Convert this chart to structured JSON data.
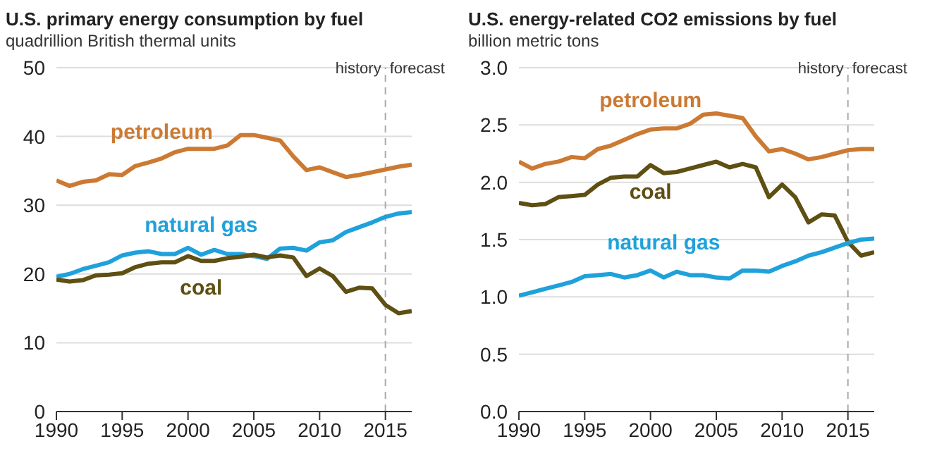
{
  "chart_data": [
    {
      "type": "line",
      "title": "U.S. primary energy consumption by fuel",
      "subtitle": "quadrillion British thermal units",
      "x": [
        1990,
        1991,
        1992,
        1993,
        1994,
        1995,
        1996,
        1997,
        1998,
        1999,
        2000,
        2001,
        2002,
        2003,
        2004,
        2005,
        2006,
        2007,
        2008,
        2009,
        2010,
        2011,
        2012,
        2013,
        2014,
        2015,
        2016,
        2017
      ],
      "series": [
        {
          "name": "petroleum",
          "color": "#cc7a33",
          "values": [
            33.6,
            32.8,
            33.4,
            33.6,
            34.5,
            34.4,
            35.7,
            36.2,
            36.8,
            37.7,
            38.2,
            38.2,
            38.2,
            38.7,
            40.2,
            40.2,
            39.8,
            39.4,
            37.1,
            35.1,
            35.5,
            34.8,
            34.1,
            34.4,
            34.8,
            35.2,
            35.6,
            35.9
          ]
        },
        {
          "name": "natural gas",
          "color": "#1fa1dc",
          "values": [
            19.6,
            20.0,
            20.7,
            21.2,
            21.7,
            22.7,
            23.1,
            23.3,
            22.9,
            22.9,
            23.8,
            22.8,
            23.5,
            22.9,
            22.9,
            22.6,
            22.2,
            23.7,
            23.8,
            23.4,
            24.6,
            24.9,
            26.1,
            26.8,
            27.5,
            28.3,
            28.8,
            29.0
          ]
        },
        {
          "name": "coal",
          "color": "#5e4f12",
          "values": [
            19.2,
            18.9,
            19.1,
            19.8,
            19.9,
            20.1,
            21.0,
            21.5,
            21.7,
            21.7,
            22.6,
            21.9,
            21.9,
            22.3,
            22.5,
            22.8,
            22.4,
            22.7,
            22.4,
            19.7,
            20.8,
            19.7,
            17.4,
            18.0,
            17.9,
            15.5,
            14.3,
            14.6
          ]
        }
      ],
      "xlim": [
        1990,
        2017
      ],
      "xticks": [
        1990,
        1995,
        2000,
        2005,
        2010,
        2015
      ],
      "ylim": [
        0,
        50
      ],
      "yticks": [
        0,
        10,
        20,
        30,
        40,
        50
      ],
      "grid": "y",
      "legend": false,
      "marker": "none",
      "line_style": "solid",
      "ref_lines": [
        {
          "axis": "x",
          "value": 2015,
          "color": "#aaaaaa",
          "line_style": "dashed"
        }
      ],
      "annotations": [
        "history",
        "forecast"
      ]
    },
    {
      "type": "line",
      "title": "U.S. energy-related CO2 emissions by fuel",
      "subtitle": "billion metric tons",
      "x": [
        1990,
        1991,
        1992,
        1993,
        1994,
        1995,
        1996,
        1997,
        1998,
        1999,
        2000,
        2001,
        2002,
        2003,
        2004,
        2005,
        2006,
        2007,
        2008,
        2009,
        2010,
        2011,
        2012,
        2013,
        2014,
        2015,
        2016,
        2017
      ],
      "series": [
        {
          "name": "petroleum",
          "color": "#cc7a33",
          "values": [
            2.18,
            2.12,
            2.16,
            2.18,
            2.22,
            2.21,
            2.29,
            2.32,
            2.37,
            2.42,
            2.46,
            2.47,
            2.47,
            2.51,
            2.59,
            2.6,
            2.58,
            2.56,
            2.4,
            2.27,
            2.29,
            2.25,
            2.2,
            2.22,
            2.25,
            2.28,
            2.29,
            2.29
          ]
        },
        {
          "name": "coal",
          "color": "#5e4f12",
          "values": [
            1.82,
            1.8,
            1.81,
            1.87,
            1.88,
            1.89,
            1.98,
            2.04,
            2.05,
            2.05,
            2.15,
            2.08,
            2.09,
            2.12,
            2.15,
            2.18,
            2.13,
            2.16,
            2.13,
            1.87,
            1.98,
            1.87,
            1.65,
            1.72,
            1.71,
            1.48,
            1.36,
            1.39
          ]
        },
        {
          "name": "natural gas",
          "color": "#1fa1dc",
          "values": [
            1.01,
            1.04,
            1.07,
            1.1,
            1.13,
            1.18,
            1.19,
            1.2,
            1.17,
            1.19,
            1.23,
            1.17,
            1.22,
            1.19,
            1.19,
            1.17,
            1.16,
            1.23,
            1.23,
            1.22,
            1.27,
            1.31,
            1.36,
            1.39,
            1.43,
            1.47,
            1.5,
            1.51
          ]
        }
      ],
      "xlim": [
        1990,
        2017
      ],
      "xticks": [
        1990,
        1995,
        2000,
        2005,
        2010,
        2015
      ],
      "ylim": [
        0,
        3
      ],
      "yticks": [
        {
          "value": 0,
          "label": "0.0"
        },
        0.5,
        {
          "value": 1,
          "label": "1.0"
        },
        1.5,
        {
          "value": 2,
          "label": "2.0"
        },
        2.5,
        {
          "value": 3,
          "label": "3.0"
        }
      ],
      "grid": "y",
      "legend": false,
      "marker": "none",
      "line_style": "solid",
      "ref_lines": [
        {
          "axis": "x",
          "value": 2015,
          "color": "#aaaaaa",
          "line_style": "dashed"
        }
      ],
      "annotations": [
        "history",
        "forecast"
      ]
    }
  ]
}
